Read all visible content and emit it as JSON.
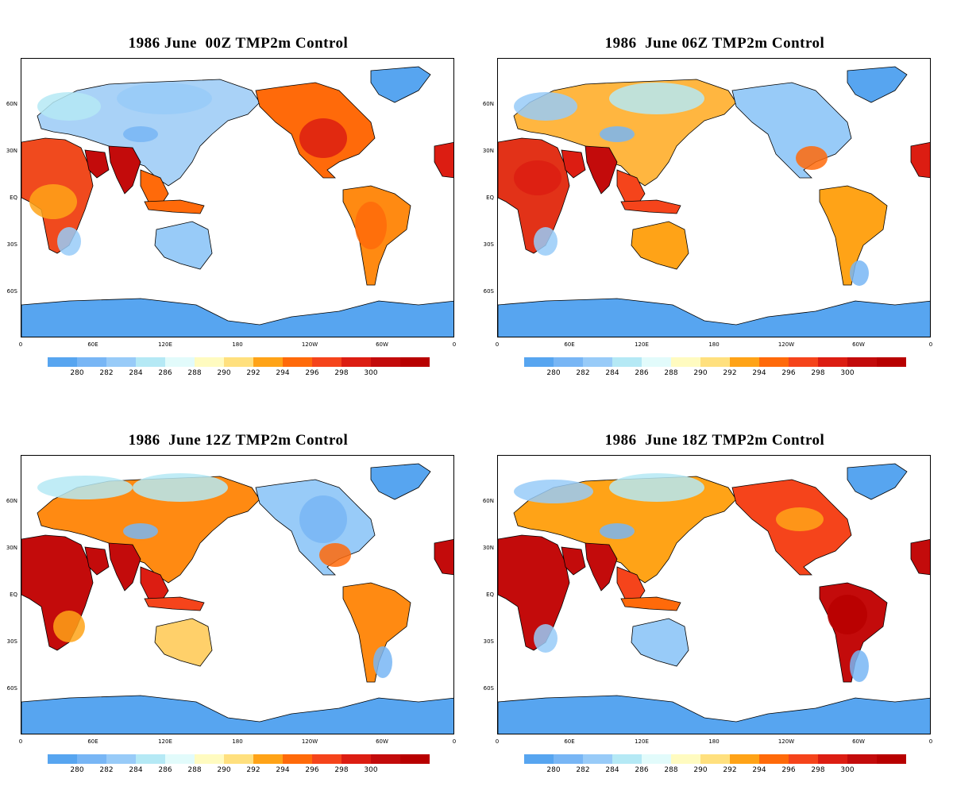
{
  "panels": [
    {
      "title": "1986 June  00Z TMP2m Control",
      "hour": "00Z"
    },
    {
      "title": "1986  June 06Z TMP2m Control",
      "hour": "06Z"
    },
    {
      "title": "1986  June 12Z TMP2m Control",
      "hour": "12Z"
    },
    {
      "title": "1986  June 18Z TMP2m Control",
      "hour": "18Z"
    }
  ],
  "lat_labels": [
    "60N",
    "30N",
    "EQ",
    "30S",
    "60S"
  ],
  "lon_labels": [
    "0",
    "60E",
    "120E",
    "180",
    "120W",
    "60W",
    "0"
  ],
  "colorbar": {
    "colors": [
      "#57a5f0",
      "#78b6f5",
      "#98cbf8",
      "#b5e9f5",
      "#e2fbfb",
      "#fffbc0",
      "#ffe07e",
      "#ffa317",
      "#ff6a0a",
      "#f5441b",
      "#dc1d12",
      "#c30b0b",
      "#b80000"
    ],
    "labels": [
      "280",
      "282",
      "284",
      "286",
      "288",
      "290",
      "292",
      "294",
      "296",
      "298",
      "300"
    ]
  },
  "colors": {
    "ocean": "#ffffff",
    "antarctica": "#57a5f0",
    "coast": "#000000"
  }
}
